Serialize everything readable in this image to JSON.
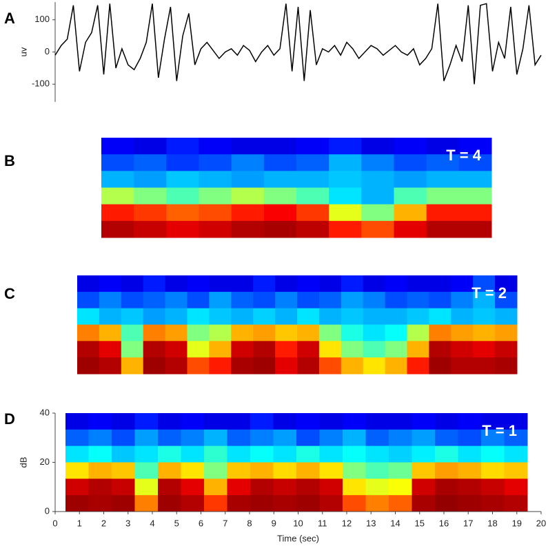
{
  "chart_data": [
    {
      "type": "line",
      "panel_label": "A",
      "ylabel": "uv",
      "color": "#000000",
      "ylim": [
        -155,
        155
      ],
      "yticks": [
        -100,
        0,
        100
      ],
      "xlim": [
        0,
        20
      ],
      "x": [
        0,
        0.25,
        0.5,
        0.75,
        1,
        1.25,
        1.5,
        1.75,
        2,
        2.25,
        2.5,
        2.75,
        3,
        3.25,
        3.5,
        3.75,
        4,
        4.25,
        4.5,
        4.75,
        5,
        5.25,
        5.5,
        5.75,
        6,
        6.25,
        6.5,
        6.75,
        7,
        7.25,
        7.5,
        7.75,
        8,
        8.25,
        8.5,
        8.75,
        9,
        9.25,
        9.5,
        9.75,
        10,
        10.25,
        10.5,
        10.75,
        11,
        11.25,
        11.5,
        11.75,
        12,
        12.25,
        12.5,
        12.75,
        13,
        13.25,
        13.5,
        13.75,
        14,
        14.25,
        14.5,
        14.75,
        15,
        15.25,
        15.5,
        15.75,
        16,
        16.25,
        16.5,
        16.75,
        17,
        17.25,
        17.5,
        17.75,
        18,
        18.25,
        18.5,
        18.75,
        19,
        19.25,
        19.5,
        19.75,
        20
      ],
      "values": [
        -10,
        20,
        40,
        145,
        -60,
        30,
        60,
        145,
        -70,
        150,
        -50,
        10,
        -40,
        -55,
        -20,
        30,
        150,
        -80,
        40,
        140,
        -90,
        50,
        120,
        -40,
        10,
        30,
        5,
        -20,
        0,
        10,
        -10,
        20,
        5,
        -30,
        0,
        20,
        -10,
        10,
        150,
        -60,
        140,
        -90,
        130,
        -40,
        10,
        0,
        20,
        -10,
        30,
        10,
        -20,
        0,
        20,
        10,
        -10,
        5,
        20,
        0,
        -10,
        10,
        -40,
        -20,
        10,
        150,
        -90,
        -40,
        20,
        -30,
        145,
        -100,
        145,
        150,
        -60,
        30,
        -20,
        140,
        -70,
        10,
        145,
        -40,
        -10
      ]
    },
    {
      "type": "heatmap",
      "panel_label": "B",
      "annotation": "T = 4",
      "z": [
        [
          0.12,
          0.1,
          0.15,
          0.12,
          0.1,
          0.1,
          0.12,
          0.15,
          0.1,
          0.12,
          0.1,
          0.12
        ],
        [
          0.2,
          0.22,
          0.18,
          0.2,
          0.25,
          0.2,
          0.22,
          0.3,
          0.25,
          0.2,
          0.22,
          0.2
        ],
        [
          0.3,
          0.28,
          0.32,
          0.3,
          0.28,
          0.3,
          0.3,
          0.32,
          0.3,
          0.28,
          0.3,
          0.3
        ],
        [
          0.55,
          0.5,
          0.45,
          0.5,
          0.55,
          0.5,
          0.45,
          0.35,
          0.3,
          0.45,
          0.5,
          0.5
        ],
        [
          0.85,
          0.82,
          0.78,
          0.8,
          0.85,
          0.88,
          0.82,
          0.6,
          0.5,
          0.7,
          0.85,
          0.85
        ],
        [
          0.95,
          0.93,
          0.9,
          0.92,
          0.95,
          0.96,
          0.94,
          0.85,
          0.8,
          0.9,
          0.95,
          0.95
        ]
      ]
    },
    {
      "type": "heatmap",
      "panel_label": "C",
      "annotation": "T = 2",
      "z": [
        [
          0.1,
          0.12,
          0.1,
          0.15,
          0.1,
          0.12,
          0.1,
          0.1,
          0.15,
          0.1,
          0.12,
          0.1,
          0.15,
          0.1,
          0.12,
          0.1,
          0.1,
          0.12,
          0.2,
          0.1
        ],
        [
          0.2,
          0.25,
          0.2,
          0.22,
          0.25,
          0.2,
          0.28,
          0.22,
          0.2,
          0.25,
          0.2,
          0.22,
          0.28,
          0.25,
          0.2,
          0.22,
          0.2,
          0.25,
          0.3,
          0.2
        ],
        [
          0.35,
          0.3,
          0.32,
          0.28,
          0.3,
          0.35,
          0.32,
          0.3,
          0.33,
          0.3,
          0.35,
          0.3,
          0.32,
          0.3,
          0.3,
          0.32,
          0.35,
          0.3,
          0.32,
          0.3
        ],
        [
          0.75,
          0.7,
          0.45,
          0.75,
          0.72,
          0.5,
          0.55,
          0.7,
          0.72,
          0.68,
          0.7,
          0.5,
          0.4,
          0.35,
          0.38,
          0.55,
          0.75,
          0.72,
          0.7,
          0.72
        ],
        [
          0.95,
          0.9,
          0.5,
          0.95,
          0.92,
          0.6,
          0.7,
          0.92,
          0.95,
          0.85,
          0.92,
          0.65,
          0.5,
          0.45,
          0.5,
          0.7,
          0.95,
          0.92,
          0.9,
          0.93
        ],
        [
          0.97,
          0.95,
          0.7,
          0.97,
          0.95,
          0.8,
          0.85,
          0.96,
          0.97,
          0.9,
          0.95,
          0.8,
          0.7,
          0.65,
          0.7,
          0.85,
          0.97,
          0.95,
          0.95,
          0.96
        ]
      ]
    },
    {
      "type": "heatmap",
      "panel_label": "D",
      "annotation": "T = 1",
      "ylabel": "dB",
      "xlabel": "Time (sec)",
      "ylim": [
        0,
        40
      ],
      "yticks": [
        0,
        20,
        40
      ],
      "xlim": [
        0,
        20
      ],
      "xticks": [
        0,
        1,
        2,
        3,
        4,
        5,
        6,
        7,
        8,
        9,
        10,
        11,
        12,
        13,
        14,
        15,
        16,
        17,
        18,
        19,
        20
      ],
      "z": [
        [
          0.1,
          0.12,
          0.1,
          0.15,
          0.1,
          0.12,
          0.1,
          0.1,
          0.15,
          0.1,
          0.12,
          0.1,
          0.12,
          0.1,
          0.1,
          0.12,
          0.1,
          0.12,
          0.1,
          0.1
        ],
        [
          0.22,
          0.25,
          0.2,
          0.28,
          0.22,
          0.25,
          0.3,
          0.22,
          0.25,
          0.28,
          0.2,
          0.25,
          0.3,
          0.22,
          0.25,
          0.28,
          0.22,
          0.2,
          0.25,
          0.22
        ],
        [
          0.35,
          0.38,
          0.32,
          0.35,
          0.4,
          0.35,
          0.42,
          0.35,
          0.38,
          0.35,
          0.4,
          0.35,
          0.38,
          0.35,
          0.33,
          0.36,
          0.4,
          0.35,
          0.38,
          0.35
        ],
        [
          0.65,
          0.7,
          0.68,
          0.45,
          0.7,
          0.65,
          0.5,
          0.68,
          0.7,
          0.66,
          0.7,
          0.65,
          0.5,
          0.45,
          0.48,
          0.68,
          0.72,
          0.7,
          0.66,
          0.68
        ],
        [
          0.92,
          0.95,
          0.93,
          0.6,
          0.95,
          0.9,
          0.7,
          0.9,
          0.95,
          0.93,
          0.95,
          0.92,
          0.65,
          0.6,
          0.62,
          0.92,
          0.96,
          0.95,
          0.93,
          0.9
        ],
        [
          0.97,
          0.96,
          0.97,
          0.75,
          0.97,
          0.95,
          0.82,
          0.96,
          0.97,
          0.96,
          0.97,
          0.95,
          0.8,
          0.75,
          0.78,
          0.96,
          0.98,
          0.97,
          0.96,
          0.95
        ]
      ]
    }
  ]
}
